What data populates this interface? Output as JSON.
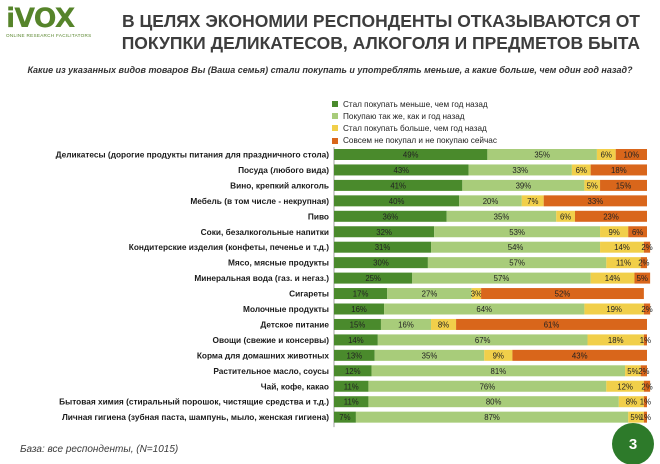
{
  "logo": {
    "main": "iVOX",
    "sub": "ONLINE RESEARCH FACILITATORS"
  },
  "header": {
    "title_line1": "В ЦЕЛЯХ ЭКОНОМИИ РЕСПОНДЕНТЫ ОТКАЗЫВАЮТСЯ ОТ",
    "title_line2": "ПОКУПКИ ДЕЛИКАТЕСОВ, АЛКОГОЛЯ И ПРЕДМЕТОВ БЫТА"
  },
  "question": "Какие из указанных видов товаров Вы (Ваша семья) стали покупать и употреблять меньше, а какие больше, чем один год назад?",
  "footnote": "База: все респонденты, (N=1015)",
  "page_number": "3",
  "chart_data": {
    "type": "bar",
    "orientation": "horizontal",
    "stacked": true,
    "xlim": [
      0,
      100
    ],
    "grid": false,
    "legend_position": "top-right",
    "categories": [
      "Деликатесы (дорогие продукты питания для праздничного стола)",
      "Посуда (любого вида)",
      "Вино, крепкий алкоголь",
      "Мебель (в том числе - некрупная)",
      "Пиво",
      "Соки, безалкогольные напитки",
      "Кондитерские изделия (конфеты, печенье и т.д.)",
      "Мясо, мясные продукты",
      "Минеральная вода (газ. и негаз.)",
      "Сигареты",
      "Молочные продукты",
      "Детское питание",
      "Овощи (свежие и консервы)",
      "Корма для домашних животных",
      "Растительное масло, соусы",
      "Чай, кофе, какао",
      "Бытовая химия (стиральный порошок, чистящие средства и т.д.)",
      "Личная гигиена (зубная паста, шампунь, мыло, женская гигиена)"
    ],
    "series": [
      {
        "name": "Стал покупать меньше, чем год назад",
        "color": "#4a8a2c",
        "values": [
          49,
          43,
          41,
          40,
          36,
          32,
          31,
          30,
          25,
          17,
          16,
          15,
          14,
          13,
          12,
          11,
          11,
          7
        ]
      },
      {
        "name": "Покупаю так же, как и год назад",
        "color": "#a8cc7a",
        "values": [
          35,
          33,
          39,
          20,
          35,
          53,
          54,
          57,
          57,
          27,
          64,
          16,
          67,
          35,
          81,
          76,
          80,
          87
        ]
      },
      {
        "name": "Стал покупать больше, чем год назад",
        "color": "#f1cf4a",
        "values": [
          6,
          6,
          5,
          7,
          6,
          9,
          14,
          11,
          14,
          3,
          19,
          8,
          18,
          9,
          5,
          12,
          8,
          5
        ]
      },
      {
        "name": "Совсем не покупал и не покупаю сейчас",
        "color": "#d9661b",
        "values": [
          10,
          18,
          15,
          33,
          23,
          6,
          2,
          2,
          5,
          52,
          2,
          61,
          1,
          43,
          2,
          2,
          1,
          1
        ]
      }
    ],
    "labels": [
      [
        "49%",
        "35%",
        "6%",
        "10%"
      ],
      [
        "43%",
        "33%",
        "6%",
        "18%"
      ],
      [
        "41%",
        "39%",
        "5%",
        "15%"
      ],
      [
        "40%",
        "20%",
        "7%",
        "33%"
      ],
      [
        "36%",
        "35%",
        "6%",
        "23%"
      ],
      [
        "32%",
        "53%",
        "9%",
        "6%"
      ],
      [
        "31%",
        "54%",
        "14%",
        "2%"
      ],
      [
        "30%",
        "57%",
        "11%",
        "2%"
      ],
      [
        "25%",
        "57%",
        "14%",
        "5%"
      ],
      [
        "17%",
        "27%",
        "3%",
        "52%"
      ],
      [
        "16%",
        "64%",
        "19%",
        "2%"
      ],
      [
        "15%",
        "16%",
        "8%",
        "61%"
      ],
      [
        "14%",
        "67%",
        "18%",
        "1%"
      ],
      [
        "13%",
        "35%",
        "9%",
        "43%"
      ],
      [
        "12%",
        "81%",
        "5%",
        "2%"
      ],
      [
        "11%",
        "76%",
        "12%",
        "2%"
      ],
      [
        "11%",
        "80%",
        "8%",
        "1%"
      ],
      [
        "7%",
        "87%",
        "5%",
        "1%"
      ]
    ]
  }
}
